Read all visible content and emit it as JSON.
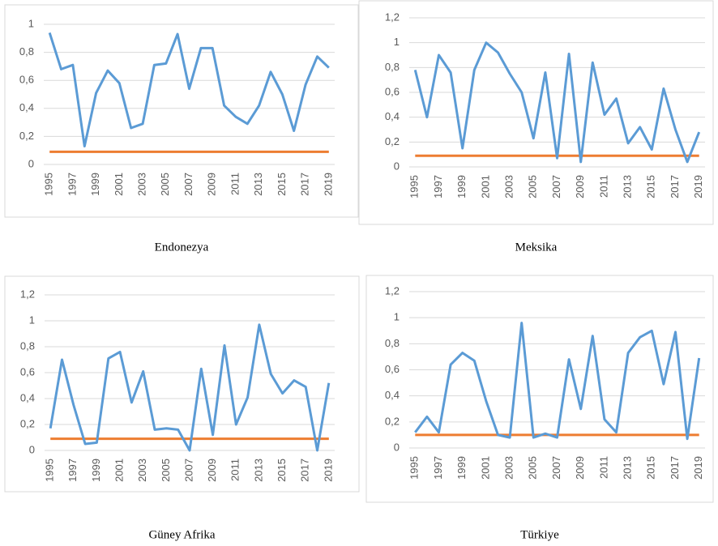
{
  "chart_data": [
    {
      "type": "line",
      "caption": "Endonezya",
      "categories": [
        "1995",
        null,
        "1997",
        null,
        "1999",
        null,
        "2001",
        null,
        "2003",
        null,
        "2005",
        null,
        "2007",
        null,
        "2009",
        null,
        "2011",
        null,
        "2013",
        null,
        "2015",
        null,
        "2017",
        null,
        "2019"
      ],
      "series": [
        {
          "color": "#5b9bd5",
          "values": [
            0.94,
            0.68,
            0.71,
            0.13,
            0.51,
            0.67,
            0.58,
            0.26,
            0.29,
            0.71,
            0.72,
            0.93,
            0.54,
            0.83,
            0.83,
            0.42,
            0.34,
            0.29,
            0.42,
            0.66,
            0.5,
            0.24,
            0.57,
            0.77,
            0.69
          ]
        },
        {
          "color": "#ed7d31",
          "values": [
            0.09,
            0.09,
            0.09,
            0.09,
            0.09,
            0.09,
            0.09,
            0.09,
            0.09,
            0.09,
            0.09,
            0.09,
            0.09,
            0.09,
            0.09,
            0.09,
            0.09,
            0.09,
            0.09,
            0.09,
            0.09,
            0.09,
            0.09,
            0.09,
            0.09
          ]
        }
      ],
      "ylim": [
        0,
        1
      ],
      "yticks": [
        0,
        {
          "value": 0.2,
          "label": "0,2"
        },
        {
          "value": 0.4,
          "label": "0,4"
        },
        {
          "value": 0.6,
          "label": "0,6"
        },
        {
          "value": 0.8,
          "label": "0,8"
        },
        1
      ],
      "grid": true
    },
    {
      "type": "line",
      "caption": "Meksika",
      "categories": [
        "1995",
        null,
        "1997",
        null,
        "1999",
        null,
        "2001",
        null,
        "2003",
        null,
        "2005",
        null,
        "2007",
        null,
        "2009",
        null,
        "2011",
        null,
        "2013",
        null,
        "2015",
        null,
        "2017",
        null,
        "2019"
      ],
      "series": [
        {
          "color": "#5b9bd5",
          "values": [
            0.78,
            0.4,
            0.9,
            0.76,
            0.15,
            0.78,
            1.0,
            0.92,
            0.75,
            0.6,
            0.23,
            0.76,
            0.07,
            0.91,
            0.04,
            0.84,
            0.42,
            0.55,
            0.19,
            0.32,
            0.14,
            0.63,
            0.3,
            0.04,
            0.28
          ]
        },
        {
          "color": "#ed7d31",
          "values": [
            0.09,
            0.09,
            0.09,
            0.09,
            0.09,
            0.09,
            0.09,
            0.09,
            0.09,
            0.09,
            0.09,
            0.09,
            0.09,
            0.09,
            0.09,
            0.09,
            0.09,
            0.09,
            0.09,
            0.09,
            0.09,
            0.09,
            0.09,
            0.09,
            0.09
          ]
        }
      ],
      "ylim": [
        0,
        1.2
      ],
      "yticks": [
        0,
        {
          "value": 0.2,
          "label": "0,2"
        },
        {
          "value": 0.4,
          "label": "0,4"
        },
        {
          "value": 0.6,
          "label": "0,6"
        },
        {
          "value": 0.8,
          "label": "0,8"
        },
        1,
        {
          "value": 1.2,
          "label": "1,2"
        }
      ],
      "grid": true
    },
    {
      "type": "line",
      "caption": "Güney Afrika",
      "categories": [
        "1995",
        null,
        "1997",
        null,
        "1999",
        null,
        "2001",
        null,
        "2003",
        null,
        "2005",
        null,
        "2007",
        null,
        "2009",
        null,
        "2011",
        null,
        "2013",
        null,
        "2015",
        null,
        "2017",
        null,
        "2019"
      ],
      "series": [
        {
          "color": "#5b9bd5",
          "values": [
            0.17,
            0.7,
            0.35,
            0.05,
            0.06,
            0.71,
            0.76,
            0.37,
            0.61,
            0.16,
            0.17,
            0.16,
            0.0,
            0.63,
            0.12,
            0.81,
            0.2,
            0.41,
            0.97,
            0.59,
            0.44,
            0.54,
            0.49,
            0.0,
            0.52
          ]
        },
        {
          "color": "#ed7d31",
          "values": [
            0.09,
            0.09,
            0.09,
            0.09,
            0.09,
            0.09,
            0.09,
            0.09,
            0.09,
            0.09,
            0.09,
            0.09,
            0.09,
            0.09,
            0.09,
            0.09,
            0.09,
            0.09,
            0.09,
            0.09,
            0.09,
            0.09,
            0.09,
            0.09,
            0.09
          ]
        }
      ],
      "ylim": [
        0,
        1.2
      ],
      "yticks": [
        0,
        {
          "value": 0.2,
          "label": "0,2"
        },
        {
          "value": 0.4,
          "label": "0,4"
        },
        {
          "value": 0.6,
          "label": "0,6"
        },
        {
          "value": 0.8,
          "label": "0,8"
        },
        1,
        {
          "value": 1.2,
          "label": "1,2"
        }
      ],
      "grid": true
    },
    {
      "type": "line",
      "caption": "Türkiye",
      "categories": [
        "1995",
        null,
        "1997",
        null,
        "1999",
        null,
        "2001",
        null,
        "2003",
        null,
        "2005",
        null,
        "2007",
        null,
        "2009",
        null,
        "2011",
        null,
        "2013",
        null,
        "2015",
        null,
        "2017",
        null,
        "2019"
      ],
      "series": [
        {
          "color": "#5b9bd5",
          "values": [
            0.12,
            0.24,
            0.12,
            0.64,
            0.73,
            0.67,
            0.36,
            0.1,
            0.08,
            0.96,
            0.08,
            0.11,
            0.08,
            0.68,
            0.3,
            0.86,
            0.22,
            0.12,
            0.73,
            0.85,
            0.9,
            0.49,
            0.89,
            0.07,
            0.69
          ]
        },
        {
          "color": "#ed7d31",
          "values": [
            0.1,
            0.1,
            0.1,
            0.1,
            0.1,
            0.1,
            0.1,
            0.1,
            0.1,
            0.1,
            0.1,
            0.1,
            0.1,
            0.1,
            0.1,
            0.1,
            0.1,
            0.1,
            0.1,
            0.1,
            0.1,
            0.1,
            0.1,
            0.1,
            0.1
          ]
        }
      ],
      "ylim": [
        0,
        1.2
      ],
      "yticks": [
        0,
        {
          "value": 0.2,
          "label": "0,2"
        },
        {
          "value": 0.4,
          "label": "0,4"
        },
        {
          "value": 0.6,
          "label": "0,6"
        },
        {
          "value": 0.8,
          "label": "0,8"
        },
        1,
        {
          "value": 1.2,
          "label": "1,2"
        }
      ],
      "grid": true
    }
  ]
}
